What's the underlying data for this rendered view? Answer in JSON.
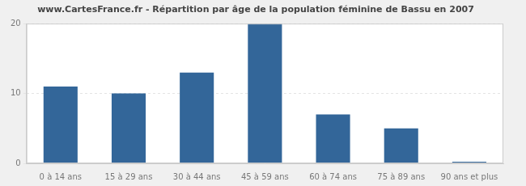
{
  "chart_data": {
    "type": "bar",
    "title": "www.CartesFrance.fr - Répartition par âge de la population féminine de Bassu en 2007",
    "categories": [
      "0 à 14 ans",
      "15 à 29 ans",
      "30 à 44 ans",
      "45 à 59 ans",
      "60 à 74 ans",
      "75 à 89 ans",
      "90 ans et plus"
    ],
    "values": [
      11,
      10,
      13,
      20,
      7,
      5,
      0
    ],
    "color": "#336699",
    "ylim": [
      0,
      20
    ],
    "yticks": [
      0,
      10,
      20
    ],
    "grid": true
  }
}
